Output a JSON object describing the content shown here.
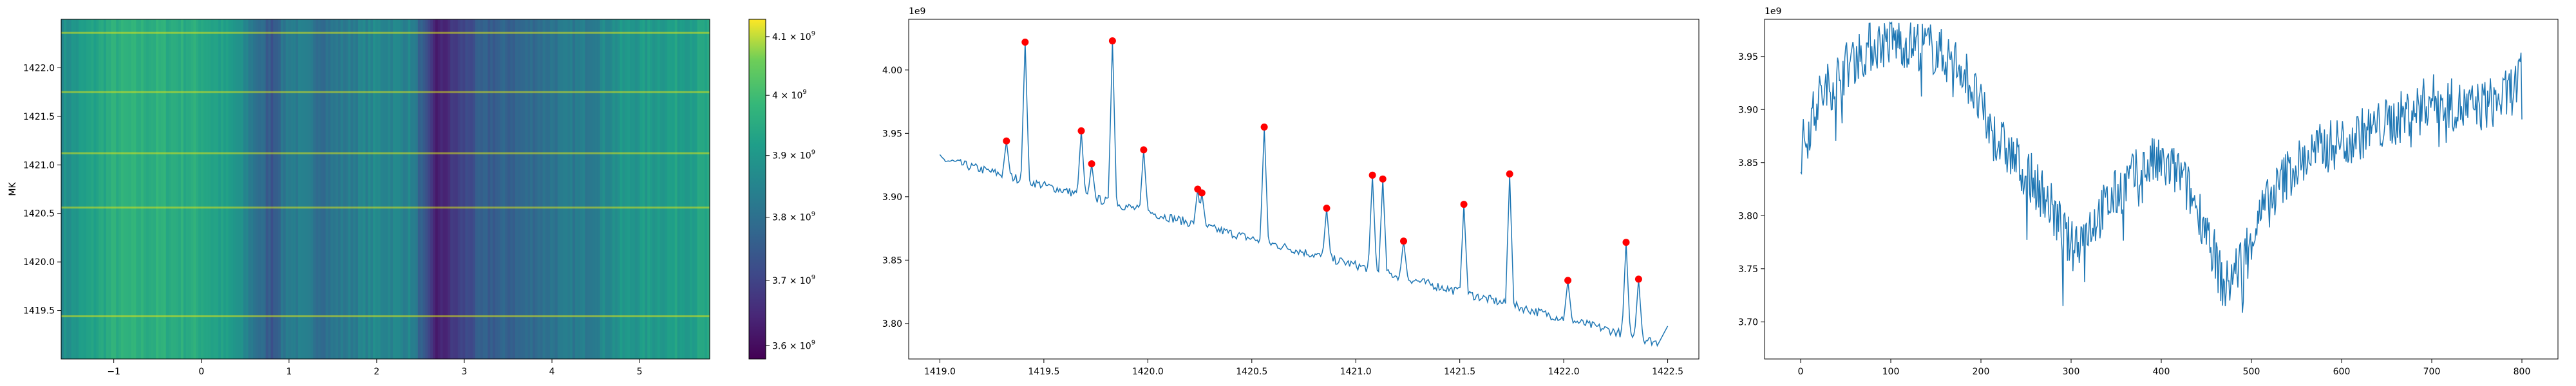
{
  "chart_data": [
    {
      "type": "heatmap",
      "title": "",
      "xlabel": "",
      "ylabel": "MK",
      "xlim": [
        -1.6,
        5.8
      ],
      "ylim": [
        1419.0,
        1422.5
      ],
      "xticks": [
        -1,
        0,
        1,
        2,
        3,
        4,
        5
      ],
      "xtick_labels": [
        "−1",
        "0",
        "1",
        "2",
        "3",
        "4",
        "5"
      ],
      "yticks": [
        1419.5,
        1420.0,
        1420.5,
        1421.0,
        1421.5,
        1422.0
      ],
      "ytick_labels": [
        "1419.5",
        "1420.0",
        "1420.5",
        "1421.0",
        "1421.5",
        "1422.0"
      ],
      "colormap": "viridis",
      "colorbar": {
        "scale": "log",
        "vmin": 3580000000.0,
        "vmax": 4130000000.0,
        "ticks": [
          3600000000.0,
          3700000000.0,
          3800000000.0,
          3900000000.0,
          4000000000.0,
          4100000000.0
        ],
        "tick_labels": [
          {
            "base": "3.6 × 10",
            "exp": "9"
          },
          {
            "base": "3.7 × 10",
            "exp": "9"
          },
          {
            "base": "3.8 × 10",
            "exp": "9"
          },
          {
            "base": "3.9 × 10",
            "exp": "9"
          },
          {
            "base": "4 × 10",
            "exp": "9"
          },
          {
            "base": "4.1 × 10",
            "exp": "9"
          }
        ]
      },
      "column_profile": {
        "x": [
          -1.6,
          -1.0,
          -0.5,
          0.0,
          0.4,
          0.8,
          1.0,
          1.4,
          2.0,
          2.4,
          2.6,
          2.7,
          2.9,
          3.2,
          3.6,
          4.0,
          4.4,
          4.8,
          5.2,
          5.8
        ],
        "values": [
          3870000000.0,
          3960000000.0,
          3960000000.0,
          3950000000.0,
          3890000000.0,
          3740000000.0,
          3840000000.0,
          3800000000.0,
          3860000000.0,
          3850000000.0,
          3680000000.0,
          3620000000.0,
          3680000000.0,
          3750000000.0,
          3770000000.0,
          3810000000.0,
          3830000000.0,
          3890000000.0,
          3910000000.0,
          3930000000.0
        ]
      },
      "bright_rows": [
        1419.44,
        1420.56,
        1421.12,
        1421.75,
        1422.36
      ]
    },
    {
      "type": "line",
      "title": "",
      "xlabel": "",
      "ylabel": "",
      "offset_text": "1e9",
      "xlim": [
        1418.85,
        1422.65
      ],
      "ylim": [
        3772000000.0,
        4040000000.0
      ],
      "xticks": [
        1419.0,
        1419.5,
        1420.0,
        1420.5,
        1421.0,
        1421.5,
        1422.0,
        1422.5
      ],
      "xtick_labels": [
        "1419.0",
        "1419.5",
        "1420.0",
        "1420.5",
        "1421.0",
        "1421.5",
        "1422.0",
        "1422.5"
      ],
      "yticks": [
        3800000000.0,
        3850000000.0,
        3900000000.0,
        3950000000.0,
        4000000000.0
      ],
      "ytick_labels": [
        "3.80",
        "3.85",
        "3.90",
        "3.95",
        "4.00"
      ],
      "baseline": {
        "x_start": 1419.0,
        "x_end": 1422.45,
        "y_start": 3930000000.0,
        "y_end": 3785000000.0
      },
      "peaks": [
        {
          "x": 1419.32,
          "y": 3944000000.0
        },
        {
          "x": 1419.41,
          "y": 4022000000.0
        },
        {
          "x": 1419.68,
          "y": 3952000000.0
        },
        {
          "x": 1419.73,
          "y": 3926000000.0
        },
        {
          "x": 1419.83,
          "y": 4023000000.0
        },
        {
          "x": 1419.98,
          "y": 3937000000.0
        },
        {
          "x": 1420.24,
          "y": 3906000000.0
        },
        {
          "x": 1420.26,
          "y": 3903000000.0
        },
        {
          "x": 1420.56,
          "y": 3955000000.0
        },
        {
          "x": 1420.86,
          "y": 3891000000.0
        },
        {
          "x": 1421.08,
          "y": 3917000000.0
        },
        {
          "x": 1421.13,
          "y": 3914000000.0
        },
        {
          "x": 1421.23,
          "y": 3865000000.0
        },
        {
          "x": 1421.52,
          "y": 3894000000.0
        },
        {
          "x": 1421.74,
          "y": 3918000000.0
        },
        {
          "x": 1422.02,
          "y": 3834000000.0
        },
        {
          "x": 1422.3,
          "y": 3864000000.0
        },
        {
          "x": 1422.36,
          "y": 3835000000.0
        }
      ],
      "line_color": "#1f77b4",
      "marker_color": "#ff0000"
    },
    {
      "type": "line",
      "title": "",
      "xlabel": "",
      "ylabel": "",
      "offset_text": "1e9",
      "xlim": [
        -40,
        840
      ],
      "ylim": [
        3665000000.0,
        3985000000.0
      ],
      "xticks": [
        0,
        100,
        200,
        300,
        400,
        500,
        600,
        700,
        800
      ],
      "xtick_labels": [
        "0",
        "100",
        "200",
        "300",
        "400",
        "500",
        "600",
        "700",
        "800"
      ],
      "yticks": [
        3700000000.0,
        3750000000.0,
        3800000000.0,
        3850000000.0,
        3900000000.0,
        3950000000.0
      ],
      "ytick_labels": [
        "3.70",
        "3.75",
        "3.80",
        "3.85",
        "3.90",
        "3.95"
      ],
      "trend": {
        "x": [
          0,
          20,
          40,
          60,
          80,
          100,
          140,
          180,
          210,
          240,
          270,
          300,
          330,
          360,
          390,
          420,
          450,
          470,
          490,
          510,
          540,
          570,
          600,
          630,
          660,
          700,
          740,
          780,
          800
        ],
        "values": [
          3860000000.0,
          3910000000.0,
          3930000000.0,
          3950000000.0,
          3960000000.0,
          3965000000.0,
          3960000000.0,
          3940000000.0,
          3880000000.0,
          3850000000.0,
          3820000000.0,
          3770000000.0,
          3800000000.0,
          3830000000.0,
          3850000000.0,
          3840000000.0,
          3790000000.0,
          3730000000.0,
          3760000000.0,
          3800000000.0,
          3840000000.0,
          3860000000.0,
          3870000000.0,
          3880000000.0,
          3890000000.0,
          3910000000.0,
          3900000000.0,
          3910000000.0,
          3930000000.0
        ]
      },
      "end_x": 800,
      "line_color": "#1f77b4"
    }
  ]
}
